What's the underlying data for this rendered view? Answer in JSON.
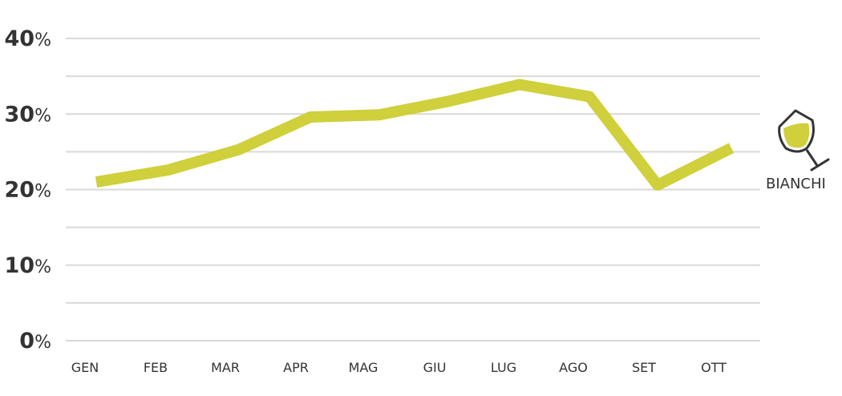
{
  "chart_data": {
    "type": "line",
    "title": "",
    "xlabel": "",
    "ylabel": "",
    "categories": [
      "GEN",
      "FEB",
      "MAR",
      "APR",
      "MAG",
      "GIU",
      "LUG",
      "AGO",
      "SET",
      "OTT"
    ],
    "series": [
      {
        "name": "BIANCHI",
        "color": "#cfd03b",
        "values": [
          21,
          22.6,
          25.3,
          29.6,
          29.9,
          31.7,
          33.9,
          32.3,
          20.6,
          25.5
        ]
      }
    ],
    "ylim": [
      0,
      40
    ],
    "yticks": [
      {
        "value": 0,
        "num": "0",
        "unit": "%"
      },
      {
        "value": 10,
        "num": "10",
        "unit": "%"
      },
      {
        "value": 20,
        "num": "20",
        "unit": "%"
      },
      {
        "value": 30,
        "num": "30",
        "unit": "%"
      },
      {
        "value": 40,
        "num": "40",
        "unit": "%"
      }
    ],
    "gridlines_every": 5,
    "grid": true,
    "grid_color": "#d9d9d9",
    "legend": {
      "placement": "right",
      "label": "BIANCHI",
      "icon": "wine-glass-icon"
    }
  }
}
